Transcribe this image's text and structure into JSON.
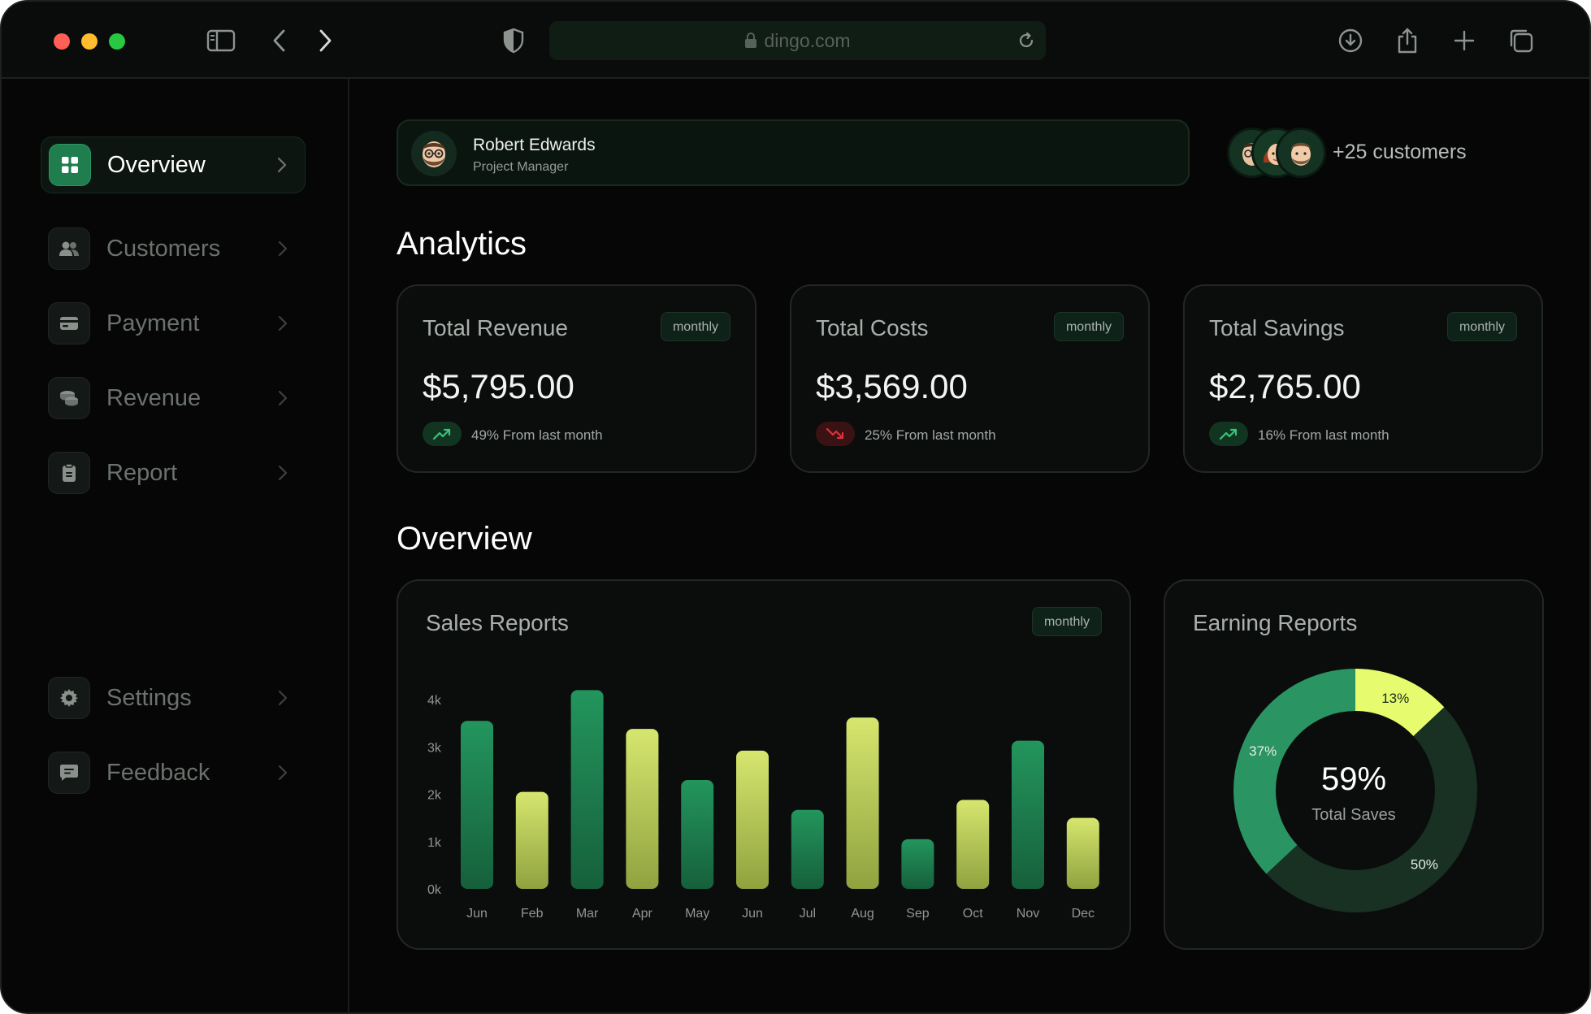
{
  "browser": {
    "url": "dingo.com"
  },
  "sidebar": {
    "items": [
      {
        "label": "Overview",
        "icon": "grid-icon",
        "active": true
      },
      {
        "label": "Customers",
        "icon": "users-icon",
        "active": false
      },
      {
        "label": "Payment",
        "icon": "card-icon",
        "active": false
      },
      {
        "label": "Revenue",
        "icon": "coins-icon",
        "active": false
      },
      {
        "label": "Report",
        "icon": "clipboard-icon",
        "active": false
      }
    ],
    "bottom_items": [
      {
        "label": "Settings",
        "icon": "gear-icon"
      },
      {
        "label": "Feedback",
        "icon": "message-icon"
      }
    ]
  },
  "profile": {
    "name": "Robert Edwards",
    "role": "Project Manager"
  },
  "customers": {
    "text": "+25 customers"
  },
  "analytics": {
    "title": "Analytics",
    "cards": [
      {
        "title": "Total Revenue",
        "badge": "monthly",
        "value": "$5,795.00",
        "trend": "up",
        "trend_text": "49% From last month"
      },
      {
        "title": "Total Costs",
        "badge": "monthly",
        "value": "$3,569.00",
        "trend": "down",
        "trend_text": "25% From last month"
      },
      {
        "title": "Total Savings",
        "badge": "monthly",
        "value": "$2,765.00",
        "trend": "up",
        "trend_text": "16% From last month"
      }
    ]
  },
  "overview": {
    "title": "Overview",
    "sales": {
      "title": "Sales Reports",
      "badge": "monthly"
    },
    "earning": {
      "title": "Earning Reports",
      "center_value": "59%",
      "center_label": "Total Saves"
    }
  },
  "chart_data": [
    {
      "type": "bar",
      "title": "Sales Reports",
      "categories": [
        "Jun",
        "Feb",
        "Mar",
        "Apr",
        "May",
        "Jun",
        "Jul",
        "Aug",
        "Sep",
        "Oct",
        "Nov",
        "Dec"
      ],
      "values": [
        3550,
        2050,
        4200,
        3380,
        2300,
        2920,
        1670,
        3620,
        1050,
        1880,
        3130,
        1500
      ],
      "yticks": [
        "0k",
        "1k",
        "2k",
        "3k",
        "4k"
      ],
      "ylim": [
        0,
        4000
      ],
      "colors": [
        "#1f8a55",
        "#c9dc63",
        "#1f8a55",
        "#c9dc63",
        "#1f8a55",
        "#c9dc63",
        "#1f8a55",
        "#c9dc63",
        "#1f8a55",
        "#c9dc63",
        "#1f8a55",
        "#c9dc63"
      ],
      "grid": false
    },
    {
      "type": "pie",
      "title": "Earning Reports",
      "slices": [
        {
          "label": "13%",
          "value": 13,
          "color": "#e6fb6d"
        },
        {
          "label": "50%",
          "value": 50,
          "color": "#183123"
        },
        {
          "label": "37%",
          "value": 37,
          "color": "#2a9462"
        }
      ]
    }
  ]
}
